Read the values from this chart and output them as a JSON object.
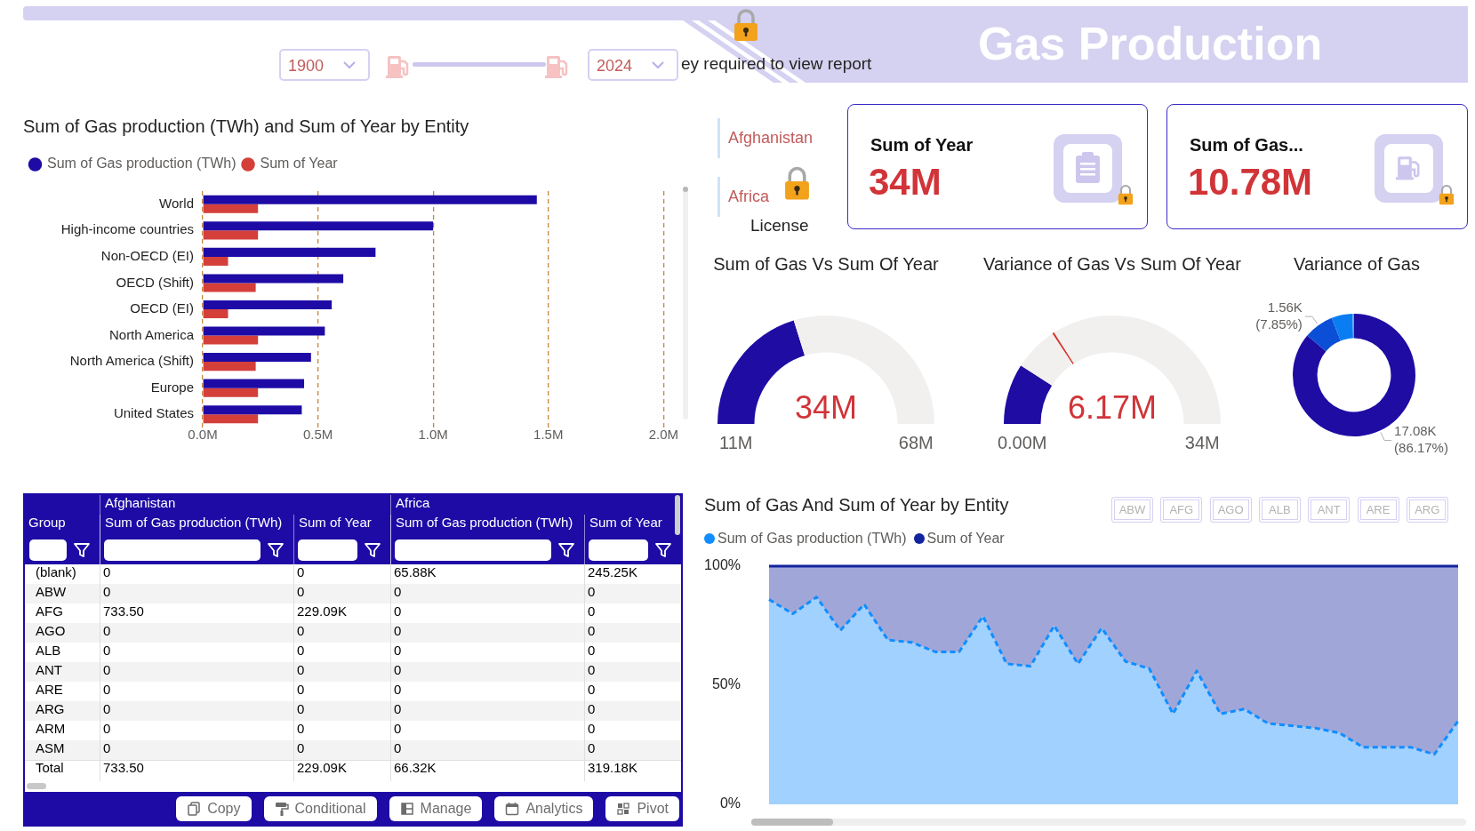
{
  "chart_data": [
    {
      "type": "other",
      "title": "Gas Production",
      "annotations": [
        "1900",
        "2024",
        "ey required to view report"
      ]
    },
    {
      "type": "bar",
      "orientation": "horizontal",
      "title": "Sum of Gas production (TWh) and Sum of Year by Entity",
      "categories": [
        "World",
        "High-income countries",
        "Non-OECD (EI)",
        "OECD (Shift)",
        "OECD (EI)",
        "North America",
        "North America (Shift)",
        "Europe",
        "United States"
      ],
      "series": [
        {
          "name": "Sum of Gas production (TWh)",
          "color": "#1e0ba5",
          "values": [
            1.45,
            1.0,
            0.75,
            0.61,
            0.56,
            0.53,
            0.47,
            0.44,
            0.43
          ]
        },
        {
          "name": "Sum of Year",
          "color": "#d43f3a",
          "values": [
            0.24,
            0.24,
            0.11,
            0.23,
            0.11,
            0.24,
            0.23,
            0.24,
            0.24
          ]
        }
      ],
      "xlim": [
        0,
        2
      ],
      "xticks": [
        {
          "value": 0,
          "label": "0.0M"
        },
        {
          "value": 0.5,
          "label": "0.5M"
        },
        {
          "value": 1,
          "label": "1.0M"
        },
        {
          "value": 1.5,
          "label": "1.5M"
        },
        {
          "value": 2,
          "label": "2.0M"
        }
      ],
      "grid": "x",
      "legend": "top left"
    },
    {
      "type": "other",
      "categories": [
        "Afghanistan",
        "Africa"
      ],
      "annotations": [
        "License"
      ]
    },
    {
      "type": "other",
      "title": "Sum of Year",
      "annotations": [
        "34M"
      ]
    },
    {
      "type": "other",
      "title": "Sum of Gas...",
      "annotations": [
        "10.78M"
      ]
    },
    {
      "type": "donut",
      "title": "Sum of Gas Vs Sum Of Year",
      "categories": [
        null,
        null
      ],
      "values": [
        40.4,
        59.6
      ],
      "colors": [
        "#1f0ca3",
        "#f1f0ef"
      ],
      "annotations": [
        "34M",
        "11M",
        "68M"
      ]
    },
    {
      "type": "donut",
      "title": "Variance of Gas Vs Sum Of Year",
      "categories": [
        null,
        null,
        null,
        null
      ],
      "values": [
        18.1,
        13.3,
        0.6,
        68.0
      ],
      "colors": [
        "#1f0ca3",
        "#f1f0ef",
        "#d6372c",
        "#f1f0ef"
      ],
      "annotations": [
        "6.17M",
        "0.00M",
        "34M"
      ]
    },
    {
      "type": "donut",
      "title": "Variance of Gas",
      "categories": [
        null,
        null,
        null,
        null
      ],
      "values": [
        17080,
        1560,
        1100,
        80
      ],
      "colors": [
        "#1f0ca3",
        "#0b4fd6",
        "#0a7df2",
        "#45a9ff"
      ],
      "value_labels": [
        "17.08K (86.17%)",
        "1.56K (7.85%)",
        null,
        null
      ]
    },
    {
      "type": "other",
      "ylabel": "Group",
      "categories": [
        "Sum of Gas production (TWh)",
        "Sum of Year",
        "Sum of Gas production (TWh)",
        "Sum of Year"
      ],
      "y_categories": [
        "(blank)",
        "ABW",
        "AFG",
        "AGO",
        "ALB",
        "ANT",
        "ARE",
        "ARG",
        "ARM",
        "ASM",
        "Total"
      ],
      "cell_labels": [
        [
          "0",
          "0",
          "65.88K",
          "245.25K"
        ],
        [
          "0",
          "0",
          "0",
          "0"
        ],
        [
          "733.50",
          "229.09K",
          "0",
          "0"
        ],
        [
          "0",
          "0",
          "0",
          "0"
        ],
        [
          "0",
          "0",
          "0",
          "0"
        ],
        [
          "0",
          "0",
          "0",
          "0"
        ],
        [
          "0",
          "0",
          "0",
          "0"
        ],
        [
          "0",
          "0",
          "0",
          "0"
        ],
        [
          "0",
          "0",
          "0",
          "0"
        ],
        [
          "0",
          "0",
          "0",
          "0"
        ],
        [
          "733.50",
          "229.09K",
          "66.32K",
          "319.18K"
        ]
      ],
      "annotations": [
        "Afghanistan",
        "Africa",
        "Copy",
        "Conditional",
        "Manage",
        "Analytics",
        "Pivot"
      ]
    },
    {
      "type": "area",
      "title": "Sum of Gas And Sum of Year by Entity",
      "stacked": true,
      "categories": [
        null,
        null,
        null,
        null,
        null,
        null,
        null,
        null,
        null,
        null,
        null,
        null,
        null,
        null,
        null,
        null,
        null,
        null,
        null,
        null,
        null,
        null,
        null,
        null,
        null,
        null,
        null,
        null,
        null,
        null
      ],
      "series": [
        {
          "name": "Sum of Gas production (TWh)",
          "color": "#118dff",
          "line_style": "dashed",
          "values": [
            86,
            80,
            87,
            73,
            84,
            69,
            68,
            64,
            64,
            79,
            59,
            58,
            75,
            59,
            74,
            60,
            57,
            38,
            56,
            38,
            40,
            34,
            33,
            32,
            30,
            24,
            24,
            24,
            21,
            35
          ]
        },
        {
          "name": "Sum of Year",
          "color": "#12239e",
          "line_style": "solid",
          "values": [
            14,
            20,
            13,
            27,
            16,
            31,
            32,
            36,
            36,
            21,
            41,
            42,
            25,
            41,
            26,
            40,
            43,
            62,
            44,
            62,
            60,
            66,
            67,
            68,
            70,
            76,
            76,
            76,
            79,
            65
          ]
        }
      ],
      "ylim": [
        0,
        100
      ],
      "yticks": [
        {
          "value": 0,
          "label": "0%"
        },
        {
          "value": 50,
          "label": "50%"
        },
        {
          "value": 100,
          "label": "100%"
        }
      ],
      "tick_labels": "y",
      "legend": "top left",
      "annotations": [
        "ABW",
        "AFG",
        "AGO",
        "ALB",
        "ANT",
        "ARE",
        "ARG"
      ]
    }
  ]
}
